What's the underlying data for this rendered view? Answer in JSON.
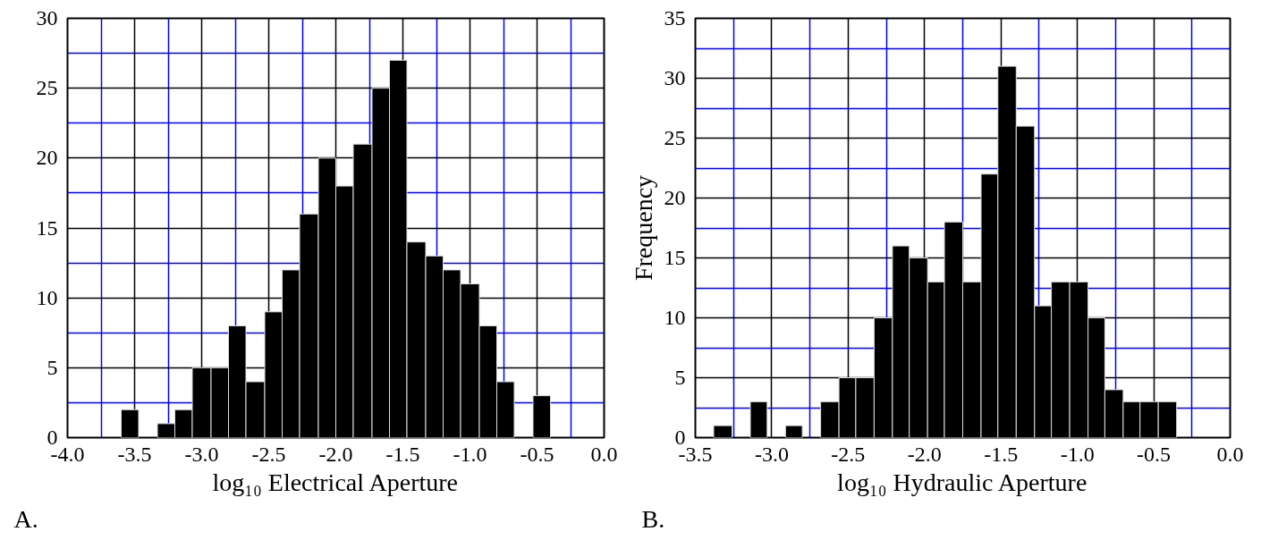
{
  "chart_data": [
    {
      "type": "histogram",
      "xlabel": "log₁₀ Electrical Aperture",
      "annotations": [
        "A."
      ],
      "bins": [
        -3.6,
        -3.47,
        -3.33,
        -3.2,
        -3.07,
        -2.93,
        -2.8,
        -2.67,
        -2.53,
        -2.4,
        -2.27,
        -2.13,
        -2.0,
        -1.87,
        -1.73,
        -1.6,
        -1.47,
        -1.33,
        -1.2,
        -1.07,
        -0.93,
        -0.8,
        -0.67,
        -0.53,
        -0.4
      ],
      "values": [
        2,
        0,
        1,
        2,
        5,
        5,
        8,
        4,
        9,
        12,
        16,
        20,
        18,
        21,
        25,
        27,
        14,
        13,
        12,
        11,
        8,
        4,
        0,
        3
      ],
      "color": "#000000",
      "xlim": [
        -4.0,
        0.0
      ],
      "xticks": [
        {
          "value": -4.0,
          "label": "-4.0"
        },
        {
          "value": -3.75,
          "label": null
        },
        {
          "value": -3.5,
          "label": "-3.5"
        },
        {
          "value": -3.25,
          "label": null
        },
        {
          "value": -3.0,
          "label": "-3.0"
        },
        {
          "value": -2.75,
          "label": null
        },
        {
          "value": -2.5,
          "label": "-2.5"
        },
        {
          "value": -2.25,
          "label": null
        },
        {
          "value": -2.0,
          "label": "-2.0"
        },
        {
          "value": -1.75,
          "label": null
        },
        {
          "value": -1.5,
          "label": "-1.5"
        },
        {
          "value": -1.25,
          "label": null
        },
        {
          "value": -1.0,
          "label": "-1.0"
        },
        {
          "value": -0.75,
          "label": null
        },
        {
          "value": -0.5,
          "label": "-0.5"
        },
        {
          "value": -0.25,
          "label": null
        },
        {
          "value": 0.0,
          "label": "0.0"
        }
      ],
      "ylim": [
        0,
        30
      ],
      "yticks": [
        0,
        {
          "value": 2.5,
          "label": null
        },
        5,
        {
          "value": 7.5,
          "label": null
        },
        10,
        {
          "value": 12.5,
          "label": null
        },
        15,
        {
          "value": 17.5,
          "label": null
        },
        20,
        {
          "value": 22.5,
          "label": null
        },
        25,
        {
          "value": 27.5,
          "label": null
        },
        30
      ],
      "grid": true
    },
    {
      "type": "histogram",
      "xlabel": "log₁₀ Hydraulic Aperture",
      "ylabel": "Frequency",
      "annotations": [
        "B."
      ],
      "bins": [
        -3.38,
        -3.26,
        -3.14,
        -3.03,
        -2.91,
        -2.8,
        -2.68,
        -2.56,
        -2.45,
        -2.33,
        -2.21,
        -2.1,
        -1.98,
        -1.87,
        -1.75,
        -1.63,
        -1.52,
        -1.4,
        -1.28,
        -1.17,
        -1.05,
        -0.93,
        -0.82,
        -0.7,
        -0.59,
        -0.47,
        -0.35
      ],
      "values": [
        1,
        0,
        3,
        0,
        1,
        0,
        3,
        5,
        5,
        10,
        16,
        15,
        13,
        18,
        13,
        22,
        31,
        26,
        11,
        13,
        13,
        10,
        4,
        3,
        3,
        3
      ],
      "color": "#000000",
      "xlim": [
        -3.5,
        0.0
      ],
      "xticks": [
        {
          "value": -3.5,
          "label": "-3.5"
        },
        {
          "value": -3.25,
          "label": null
        },
        {
          "value": -3.0,
          "label": "-3.0"
        },
        {
          "value": -2.75,
          "label": null
        },
        {
          "value": -2.5,
          "label": "-2.5"
        },
        {
          "value": -2.25,
          "label": null
        },
        {
          "value": -2.0,
          "label": "-2.0"
        },
        {
          "value": -1.75,
          "label": null
        },
        {
          "value": -1.5,
          "label": "-1.5"
        },
        {
          "value": -1.25,
          "label": null
        },
        {
          "value": -1.0,
          "label": "-1.0"
        },
        {
          "value": -0.75,
          "label": null
        },
        {
          "value": -0.5,
          "label": "-0.5"
        },
        {
          "value": -0.25,
          "label": null
        },
        {
          "value": 0.0,
          "label": "0.0"
        }
      ],
      "ylim": [
        0,
        35
      ],
      "yticks": [
        0,
        {
          "value": 2.5,
          "label": null
        },
        5,
        {
          "value": 7.5,
          "label": null
        },
        10,
        {
          "value": 12.5,
          "label": null
        },
        15,
        {
          "value": 17.5,
          "label": null
        },
        20,
        {
          "value": 22.5,
          "label": null
        },
        25,
        {
          "value": 27.5,
          "label": null
        },
        30,
        {
          "value": 32.5,
          "label": null
        },
        35
      ],
      "grid": true
    }
  ]
}
